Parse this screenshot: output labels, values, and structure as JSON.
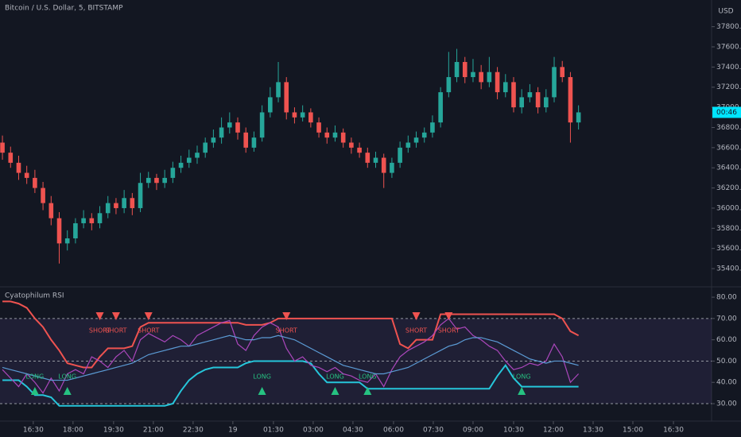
{
  "chart_data": [
    {
      "type": "candlestick",
      "title": "Bitcoin / U.S. Dollar, 5, BITSTAMP",
      "axis_unit": "USD",
      "last_label": "00:46",
      "up_color": "#26a69a",
      "down_color": "#ef5350",
      "label_color": "#00e5ff",
      "xlim": [
        -0.3,
        87.4
      ],
      "ylim": [
        35227,
        38065
      ],
      "yticks": [
        {
          "value": 35400,
          "label": "35400.00"
        },
        {
          "value": 35600,
          "label": "35600.00"
        },
        {
          "value": 35800,
          "label": "35800.00"
        },
        {
          "value": 36000,
          "label": "36000.00"
        },
        {
          "value": 36200,
          "label": "36200.00"
        },
        {
          "value": 36400,
          "label": "36400.00"
        },
        {
          "value": 36600,
          "label": "36600.00"
        },
        {
          "value": 36800,
          "label": "36800.00"
        },
        {
          "value": 37000,
          "label": "37000.00"
        },
        {
          "value": 37200,
          "label": "37200.00"
        },
        {
          "value": 37400,
          "label": "37400.00"
        },
        {
          "value": 37600,
          "label": "37600.00"
        },
        {
          "value": 37800,
          "label": "37800.00"
        }
      ],
      "open": [
        36650,
        36550,
        36450,
        36350,
        36300,
        36200,
        36050,
        35900,
        35650,
        35700,
        35850,
        35900,
        35850,
        35950,
        36050,
        36000,
        36100,
        36000,
        36250,
        36300,
        36250,
        36300,
        36400,
        36450,
        36500,
        36550,
        36650,
        36700,
        36800,
        36850,
        36750,
        36600,
        36700,
        36950,
        37100,
        37250,
        36950,
        36900,
        36950,
        36850,
        36750,
        36700,
        36750,
        36650,
        36600,
        36550,
        36450,
        36500,
        36350,
        36450,
        36600,
        36650,
        36700,
        36750,
        36850,
        37150,
        37300,
        37450,
        37300,
        37350,
        37250,
        37350,
        37150,
        37250,
        37000,
        37100,
        37150,
        37000,
        37100,
        37400,
        37300,
        36850
      ],
      "high": [
        36720,
        36610,
        36520,
        36420,
        36380,
        36260,
        36120,
        35960,
        35780,
        35900,
        35980,
        35950,
        36020,
        36120,
        36100,
        36180,
        36150,
        36350,
        36360,
        36340,
        36380,
        36460,
        36520,
        36580,
        36620,
        36700,
        36780,
        36900,
        36950,
        36900,
        36800,
        36760,
        37020,
        37200,
        37450,
        37300,
        37000,
        37020,
        36990,
        36900,
        36800,
        36820,
        36790,
        36700,
        36650,
        36600,
        36560,
        36540,
        36500,
        36660,
        36720,
        36760,
        36800,
        36920,
        37200,
        37550,
        37580,
        37500,
        37480,
        37420,
        37500,
        37400,
        37330,
        37300,
        37180,
        37230,
        37200,
        37180,
        37500,
        37460,
        37350,
        37020
      ],
      "low": [
        36480,
        36400,
        36280,
        36240,
        36150,
        35980,
        35830,
        35450,
        35580,
        35650,
        35800,
        35780,
        35800,
        35900,
        35940,
        35950,
        35930,
        35960,
        36200,
        36180,
        36200,
        36250,
        36350,
        36400,
        36440,
        36500,
        36600,
        36640,
        36740,
        36680,
        36550,
        36560,
        36660,
        36900,
        37050,
        36880,
        36840,
        36860,
        36800,
        36700,
        36640,
        36660,
        36600,
        36540,
        36500,
        36400,
        36400,
        36200,
        36300,
        36400,
        36550,
        36600,
        36650,
        36700,
        36800,
        37100,
        37250,
        37240,
        37250,
        37180,
        37200,
        37080,
        37100,
        36950,
        36940,
        37050,
        36940,
        36950,
        37050,
        37250,
        36650,
        36780
      ],
      "close": [
        36550,
        36450,
        36350,
        36300,
        36200,
        36050,
        35900,
        35650,
        35700,
        35850,
        35900,
        35850,
        35950,
        36050,
        36000,
        36100,
        36000,
        36250,
        36300,
        36250,
        36300,
        36400,
        36450,
        36500,
        36550,
        36650,
        36700,
        36800,
        36850,
        36750,
        36600,
        36700,
        36950,
        37100,
        37250,
        36950,
        36900,
        36950,
        36850,
        36750,
        36700,
        36750,
        36650,
        36600,
        36550,
        36450,
        36500,
        36350,
        36450,
        36600,
        36650,
        36700,
        36750,
        36850,
        37150,
        37300,
        37450,
        37300,
        37350,
        37250,
        37350,
        37150,
        37250,
        37000,
        37100,
        37150,
        37000,
        37100,
        37400,
        37300,
        36850,
        36950
      ]
    },
    {
      "type": "line",
      "title": "Cyatophilum RSI",
      "xlim": [
        -0.3,
        87.4
      ],
      "ylim": [
        21.8,
        84.5
      ],
      "yticks": [
        {
          "value": 30,
          "label": "30.00"
        },
        {
          "value": 40,
          "label": "40.00"
        },
        {
          "value": 50,
          "label": "50.00"
        },
        {
          "value": 60,
          "label": "60.00"
        },
        {
          "value": 70,
          "label": "70.00"
        },
        {
          "value": 80,
          "label": "80.00"
        }
      ],
      "levels": [
        30,
        50,
        70
      ],
      "band": [
        30,
        70
      ],
      "band_color": "rgba(126,87,194,0.12)",
      "xticks": [
        {
          "value": 3.8,
          "label": "16:30"
        },
        {
          "value": 8.7,
          "label": "18:00"
        },
        {
          "value": 13.7,
          "label": "19:30"
        },
        {
          "value": 18.6,
          "label": "21:00"
        },
        {
          "value": 23.5,
          "label": "22:30"
        },
        {
          "value": 28.4,
          "label": "19"
        },
        {
          "value": 33.4,
          "label": "01:30"
        },
        {
          "value": 38.3,
          "label": "03:00"
        },
        {
          "value": 43.2,
          "label": "04:30"
        },
        {
          "value": 48.2,
          "label": "06:00"
        },
        {
          "value": 53.1,
          "label": "07:30"
        },
        {
          "value": 58.0,
          "label": "09:00"
        },
        {
          "value": 63.0,
          "label": "10:30"
        },
        {
          "value": 67.9,
          "label": "12:00"
        },
        {
          "value": 72.8,
          "label": "13:30"
        },
        {
          "value": 77.7,
          "label": "15:00"
        },
        {
          "value": 82.7,
          "label": "16:30"
        }
      ],
      "series": [
        {
          "color": "#ef5350",
          "values": [
            78,
            78,
            77,
            75,
            70,
            66,
            60,
            55,
            49,
            48,
            47,
            47,
            52,
            56,
            56,
            56,
            57,
            66,
            68,
            68,
            68,
            68,
            68,
            68,
            68,
            68,
            68,
            68,
            68,
            68,
            67,
            67,
            67,
            68,
            70,
            70,
            70,
            70,
            70,
            70,
            70,
            70,
            70,
            70,
            70,
            70,
            70,
            70,
            70,
            58,
            56,
            60,
            60,
            60,
            72,
            72,
            72,
            72,
            72,
            72,
            72,
            72,
            72,
            72,
            72,
            72,
            72,
            72,
            72,
            70,
            64,
            62
          ]
        },
        {
          "color": "#26c6da",
          "values": [
            41,
            41,
            41,
            38,
            34,
            34,
            33,
            29,
            29,
            29,
            29,
            29,
            29,
            29,
            29,
            29,
            29,
            29,
            29,
            29,
            29,
            30,
            36,
            41,
            44,
            46,
            47,
            47,
            47,
            47,
            49,
            50,
            50,
            50,
            50,
            50,
            50,
            50,
            49,
            44,
            40,
            40,
            40,
            40,
            40,
            37,
            37,
            37,
            37,
            37,
            37,
            37,
            37,
            37,
            37,
            37,
            37,
            37,
            37,
            37,
            37,
            43,
            48,
            42,
            38,
            38,
            38,
            38,
            38,
            38,
            38,
            38
          ]
        },
        {
          "color": "#ab47bc",
          "values": [
            46,
            42,
            38,
            44,
            40,
            35,
            42,
            36,
            44,
            46,
            44,
            52,
            50,
            47,
            52,
            55,
            50,
            60,
            63,
            61,
            59,
            62,
            60,
            57,
            62,
            64,
            66,
            68,
            69,
            58,
            55,
            62,
            66,
            68,
            66,
            56,
            50,
            52,
            48,
            47,
            45,
            47,
            44,
            43,
            41,
            40,
            44,
            38,
            46,
            52,
            55,
            57,
            59,
            62,
            67,
            70,
            65,
            66,
            62,
            60,
            57,
            55,
            50,
            46,
            47,
            49,
            48,
            50,
            58,
            52,
            40,
            44
          ]
        },
        {
          "color": "#5b9bd5",
          "values": [
            47,
            46,
            45,
            44,
            43,
            42,
            41,
            41,
            41,
            42,
            43,
            44,
            45,
            46,
            47,
            48,
            49,
            51,
            53,
            54,
            55,
            56,
            57,
            57,
            58,
            59,
            60,
            61,
            62,
            61,
            60,
            60,
            61,
            61,
            62,
            61,
            60,
            58,
            56,
            54,
            52,
            50,
            48,
            47,
            46,
            45,
            44,
            44,
            45,
            46,
            47,
            49,
            51,
            53,
            55,
            57,
            58,
            60,
            61,
            61,
            60,
            59,
            57,
            55,
            53,
            51,
            50,
            49,
            50,
            50,
            49,
            48
          ]
        }
      ],
      "signals": [
        {
          "text": "SHORT",
          "index": 12,
          "color": "#ef5350"
        },
        {
          "text": "SHORT",
          "index": 14,
          "color": "#ef5350"
        },
        {
          "text": "SHORT",
          "index": 18,
          "color": "#ef5350"
        },
        {
          "text": "SHORT",
          "index": 35,
          "color": "#ef5350"
        },
        {
          "text": "SHORT",
          "index": 51,
          "color": "#ef5350"
        },
        {
          "text": "SHORT",
          "index": 55,
          "color": "#ef5350"
        },
        {
          "text": "LONG",
          "index": 4,
          "color": "#26c281"
        },
        {
          "text": "LONG",
          "index": 8,
          "color": "#26c281"
        },
        {
          "text": "LONG",
          "index": 32,
          "color": "#26c281"
        },
        {
          "text": "LONG",
          "index": 41,
          "color": "#26c281"
        },
        {
          "text": "LONG",
          "index": 45,
          "color": "#26c281"
        },
        {
          "text": "LONG",
          "index": 64,
          "color": "#26c281"
        }
      ]
    }
  ]
}
